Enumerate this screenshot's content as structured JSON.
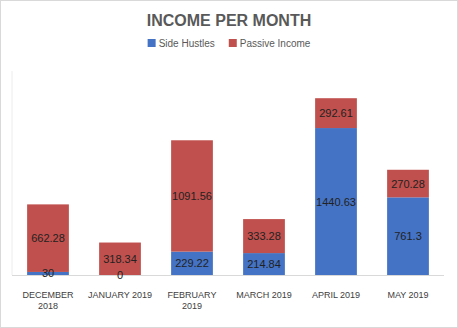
{
  "chart_data": {
    "type": "bar",
    "title": "INCOME PER MONTH",
    "categories": [
      "DECEMBER 2018",
      "JANUARY 2019",
      "FEBRUARY 2019",
      "MARCH 2019",
      "APRIL 2019",
      "MAY 2019"
    ],
    "series": [
      {
        "name": "Side Hustles",
        "color": "#4472c4",
        "values": [
          30,
          0,
          229.22,
          214.84,
          1440.63,
          761.3
        ]
      },
      {
        "name": "Passive Income",
        "color": "#c0504d",
        "values": [
          662.28,
          318.34,
          1091.56,
          333.28,
          292.61,
          270.28
        ]
      }
    ],
    "ylim": [
      0,
      2000
    ],
    "stacked": true,
    "data_labels": true,
    "grid": false,
    "legend": "top",
    "tick_labels": "x"
  }
}
